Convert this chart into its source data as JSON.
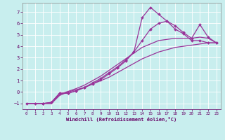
{
  "xlabel": "Windchill (Refroidissement éolien,°C)",
  "bg_color": "#c8eeee",
  "line_color": "#993399",
  "grid_color": "#aacccc",
  "xlim": [
    -0.5,
    23.5
  ],
  "ylim": [
    -1.5,
    7.8
  ],
  "yticks": [
    -1,
    0,
    1,
    2,
    3,
    4,
    5,
    6,
    7
  ],
  "xticks": [
    0,
    1,
    2,
    3,
    4,
    5,
    6,
    7,
    8,
    9,
    10,
    11,
    12,
    13,
    14,
    15,
    16,
    17,
    18,
    19,
    20,
    21,
    22,
    23
  ],
  "series": [
    {
      "x": [
        0,
        1,
        2,
        3,
        4,
        5,
        6,
        7,
        8,
        9,
        10,
        11,
        12,
        13,
        14,
        15,
        16,
        17,
        18,
        19,
        20,
        21,
        22,
        23
      ],
      "y": [
        -1.0,
        -1.0,
        -1.0,
        -1.0,
        -0.3,
        0.0,
        0.2,
        0.4,
        0.7,
        1.0,
        1.3,
        1.7,
        2.1,
        2.5,
        2.9,
        3.2,
        3.5,
        3.7,
        3.9,
        4.0,
        4.1,
        4.2,
        4.3,
        4.3
      ],
      "marker": false,
      "lw": 0.9
    },
    {
      "x": [
        0,
        1,
        2,
        3,
        4,
        5,
        6,
        7,
        8,
        9,
        10,
        11,
        12,
        13,
        14,
        15,
        16,
        17,
        18,
        19,
        20,
        21,
        22,
        23
      ],
      "y": [
        -1.0,
        -1.0,
        -1.0,
        -1.0,
        -0.2,
        0.05,
        0.3,
        0.6,
        1.0,
        1.4,
        1.9,
        2.4,
        2.9,
        3.4,
        3.9,
        4.2,
        4.5,
        4.6,
        4.7,
        4.7,
        4.7,
        4.8,
        4.7,
        4.3
      ],
      "marker": false,
      "lw": 0.9
    },
    {
      "x": [
        0,
        1,
        2,
        3,
        4,
        5,
        6,
        7,
        8,
        9,
        10,
        11,
        12,
        13,
        14,
        15,
        16,
        17,
        18,
        19,
        20,
        21,
        22,
        23
      ],
      "y": [
        -1.0,
        -1.0,
        -1.0,
        -0.9,
        -0.1,
        -0.1,
        0.1,
        0.4,
        0.8,
        1.2,
        1.7,
        2.2,
        2.8,
        3.5,
        4.5,
        5.5,
        6.0,
        6.2,
        5.8,
        5.2,
        4.7,
        5.9,
        4.8,
        4.3
      ],
      "marker": true,
      "lw": 0.9
    },
    {
      "x": [
        2,
        3,
        4,
        5,
        6,
        7,
        8,
        9,
        10,
        11,
        12,
        13,
        14,
        15,
        16,
        17,
        18,
        19,
        20,
        21,
        22,
        23
      ],
      "y": [
        -1.0,
        -0.9,
        -0.1,
        -0.1,
        0.1,
        0.4,
        0.7,
        1.1,
        1.6,
        2.1,
        2.7,
        3.5,
        6.5,
        7.4,
        6.8,
        6.2,
        5.5,
        5.1,
        4.5,
        4.5,
        4.3,
        4.3
      ],
      "marker": true,
      "lw": 0.9
    }
  ]
}
